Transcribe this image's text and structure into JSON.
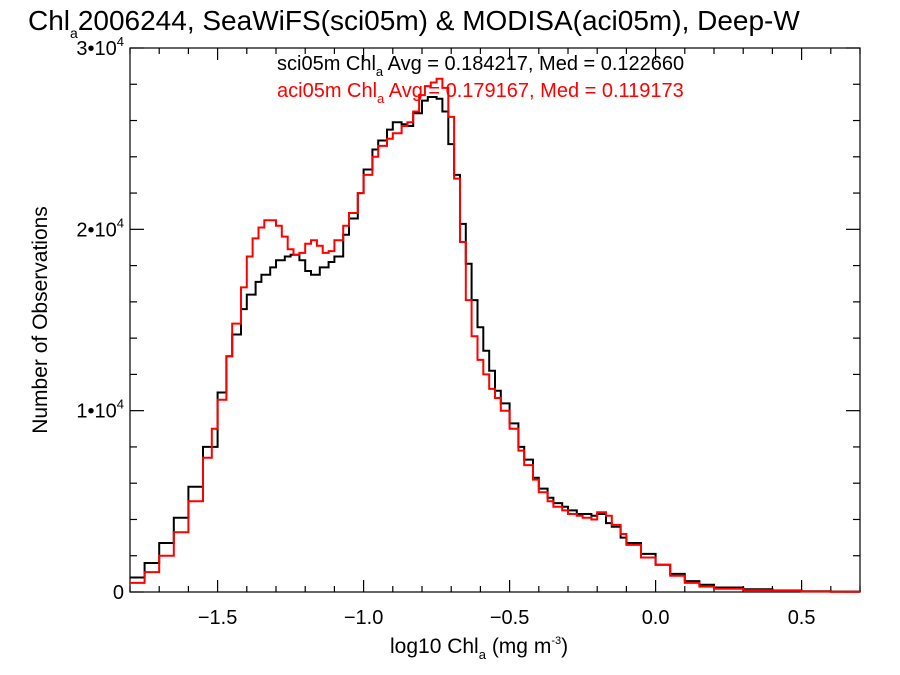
{
  "chart_data": {
    "type": "line",
    "title": "2006244, SeaWiFS(sci05m) & MODISA(aci05m), Deep-W",
    "title_prefix": "Chl",
    "title_prefix_sub": "a",
    "xlabel_main": "log10 Chl",
    "xlabel_sub": "a",
    "xlabel_units": "(mg m",
    "xlabel_units_exp": "-3",
    "xlabel_units_close": ")",
    "ylabel": "Number of Observations",
    "xlim": [
      -1.8,
      0.7
    ],
    "ylim": [
      0,
      30000
    ],
    "x_ticks": [
      {
        "value": -1.5,
        "label": "−1.5"
      },
      {
        "value": -1.0,
        "label": "−1.0"
      },
      {
        "value": -0.5,
        "label": "−0.5"
      },
      {
        "value": 0.0,
        "label": "0.0"
      },
      {
        "value": 0.5,
        "label": "0.5"
      }
    ],
    "y_ticks": [
      {
        "value": 0,
        "base": "0",
        "exp": ""
      },
      {
        "value": 10000,
        "base": "1•10",
        "exp": "4"
      },
      {
        "value": 20000,
        "base": "2•10",
        "exp": "4"
      },
      {
        "value": 30000,
        "base": "3•10",
        "exp": "4"
      }
    ],
    "series": [
      {
        "name": "sci05m",
        "color": "#000000",
        "annotation": {
          "prefix": "sci05m Chl",
          "sub": "a",
          "rest": " Avg = 0.184217, Med = 0.122660"
        },
        "x": [
          -1.8,
          -1.75,
          -1.7,
          -1.65,
          -1.6,
          -1.55,
          -1.5,
          -1.47,
          -1.45,
          -1.42,
          -1.4,
          -1.37,
          -1.35,
          -1.32,
          -1.3,
          -1.27,
          -1.25,
          -1.22,
          -1.2,
          -1.18,
          -1.15,
          -1.12,
          -1.1,
          -1.07,
          -1.05,
          -1.02,
          -1.0,
          -0.97,
          -0.95,
          -0.92,
          -0.9,
          -0.87,
          -0.85,
          -0.83,
          -0.8,
          -0.78,
          -0.75,
          -0.73,
          -0.71,
          -0.69,
          -0.67,
          -0.65,
          -0.63,
          -0.61,
          -0.59,
          -0.57,
          -0.55,
          -0.53,
          -0.5,
          -0.47,
          -0.45,
          -0.42,
          -0.4,
          -0.37,
          -0.35,
          -0.32,
          -0.3,
          -0.27,
          -0.25,
          -0.22,
          -0.2,
          -0.17,
          -0.15,
          -0.12,
          -0.1,
          -0.05,
          0.0,
          0.05,
          0.1,
          0.15,
          0.2,
          0.3,
          0.4,
          0.5,
          0.6,
          0.7
        ],
        "y": [
          800,
          1600,
          2700,
          4100,
          5800,
          8000,
          11000,
          13000,
          14200,
          15600,
          16400,
          17100,
          17500,
          17900,
          18300,
          18500,
          18600,
          18300,
          17700,
          17500,
          17900,
          18200,
          18500,
          19700,
          20600,
          22000,
          23300,
          24400,
          24900,
          25500,
          25900,
          25800,
          25700,
          26400,
          27100,
          27300,
          27200,
          26500,
          24700,
          23000,
          20300,
          18100,
          16100,
          14600,
          13300,
          12200,
          11100,
          10400,
          9300,
          8000,
          7300,
          6300,
          5700,
          5200,
          4900,
          4700,
          4500,
          4300,
          4300,
          4200,
          4300,
          3800,
          3600,
          3000,
          2700,
          2100,
          1500,
          1000,
          600,
          400,
          250,
          150,
          80,
          40,
          20,
          10
        ]
      },
      {
        "name": "aci05m",
        "color": "#ff0000",
        "annotation": {
          "prefix": "aci05m Chl",
          "sub": "a",
          "rest": " Avg = 0.179167, Med = 0.119173"
        },
        "x": [
          -1.8,
          -1.75,
          -1.7,
          -1.65,
          -1.6,
          -1.55,
          -1.52,
          -1.5,
          -1.47,
          -1.45,
          -1.42,
          -1.4,
          -1.38,
          -1.36,
          -1.34,
          -1.32,
          -1.3,
          -1.28,
          -1.26,
          -1.24,
          -1.22,
          -1.2,
          -1.18,
          -1.16,
          -1.14,
          -1.12,
          -1.1,
          -1.07,
          -1.05,
          -1.02,
          -1.0,
          -0.97,
          -0.95,
          -0.92,
          -0.9,
          -0.87,
          -0.85,
          -0.83,
          -0.81,
          -0.79,
          -0.77,
          -0.75,
          -0.73,
          -0.71,
          -0.69,
          -0.67,
          -0.65,
          -0.63,
          -0.61,
          -0.59,
          -0.57,
          -0.55,
          -0.53,
          -0.5,
          -0.47,
          -0.45,
          -0.42,
          -0.4,
          -0.37,
          -0.35,
          -0.32,
          -0.3,
          -0.27,
          -0.25,
          -0.22,
          -0.2,
          -0.17,
          -0.15,
          -0.12,
          -0.1,
          -0.05,
          0.0,
          0.05,
          0.1,
          0.15,
          0.2,
          0.3,
          0.4,
          0.5,
          0.6,
          0.7
        ],
        "y": [
          500,
          1100,
          2000,
          3300,
          5000,
          7400,
          9000,
          10600,
          13000,
          14800,
          16800,
          18500,
          19500,
          20100,
          20500,
          20500,
          20200,
          19600,
          18900,
          18600,
          18700,
          19200,
          19400,
          19100,
          18700,
          18800,
          19400,
          20200,
          20900,
          22000,
          23000,
          24000,
          24600,
          25000,
          25300,
          25700,
          25900,
          26500,
          27400,
          27900,
          28100,
          28300,
          27800,
          26200,
          22800,
          19300,
          16100,
          14100,
          12800,
          12000,
          11200,
          10700,
          10000,
          9000,
          7800,
          7000,
          6200,
          5500,
          5000,
          4700,
          4500,
          4300,
          4200,
          4100,
          4000,
          4400,
          4200,
          3700,
          3200,
          2600,
          1900,
          1500,
          900,
          500,
          300,
          180,
          100,
          60,
          30,
          15,
          8
        ]
      }
    ]
  }
}
